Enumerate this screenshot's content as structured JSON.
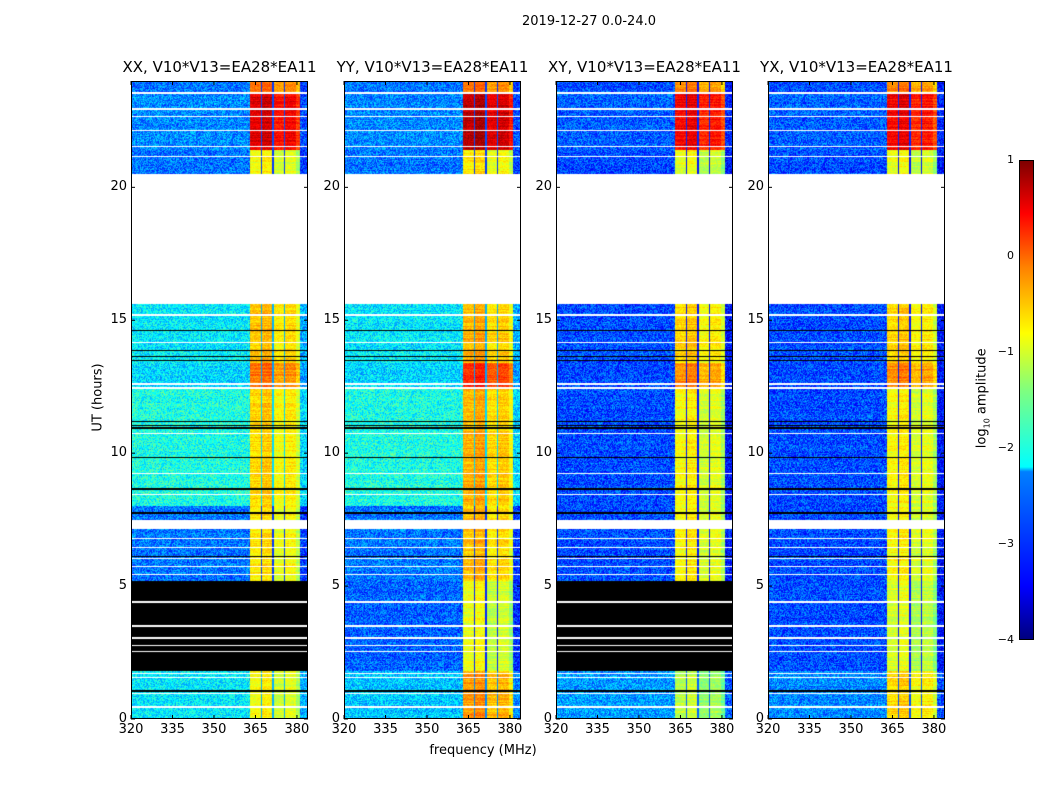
{
  "chart_data": {
    "type": "heatmap",
    "title": "2019-12-27 0.0-24.0",
    "xlabel": "frequency (MHz)",
    "ylabel": "UT (hours)",
    "xlim": [
      320,
      384
    ],
    "ylim": [
      0,
      24
    ],
    "xticks": [
      320,
      335,
      350,
      365,
      380
    ],
    "yticks": [
      0,
      5,
      10,
      15,
      20
    ],
    "colorbar": {
      "label_main": "log",
      "label_sub": "10",
      "label_rest": " amplitude",
      "min": -4,
      "max": 1,
      "ticks": [
        "1",
        "0",
        "−1",
        "−2",
        "−3",
        "−4"
      ],
      "tick_values": [
        1,
        0,
        -1,
        -2,
        -3,
        -4
      ],
      "colormap": "jet"
    },
    "rfi_band_mhz": [
      363,
      381
    ],
    "channel_gaps_mhz": [
      367.2,
      371.4,
      375.6
    ],
    "white_lines_hours": [
      0.45,
      0.95,
      1.55,
      1.7,
      2.55,
      2.75,
      3.05,
      3.5,
      4.4,
      5.45,
      5.75,
      6.05,
      6.45,
      6.8,
      8.45,
      9.25,
      10.75,
      12.45,
      12.6,
      14.15,
      15.2,
      21.15,
      21.55,
      22.15,
      22.65,
      22.95,
      23.55
    ],
    "black_lines_hours": [
      1.05,
      6.1,
      7.75,
      8.65,
      9.85,
      10.95,
      11.05,
      11.2,
      13.5,
      13.65,
      13.85,
      14.6
    ],
    "panels": [
      {
        "title": "XX, V10*V13=EA28*EA11",
        "flagged_white": [
          [
            15.6,
            20.5
          ],
          [
            7.15,
            7.5
          ]
        ],
        "zero_black": [
          [
            1.8,
            5.2
          ]
        ],
        "segments": [
          [
            0,
            1.8,
            -2.2,
            -1.0
          ],
          [
            5.2,
            8,
            -2.8,
            -0.9
          ],
          [
            8,
            12.5,
            -2.0,
            -0.8
          ],
          [
            12.5,
            13.4,
            -2.3,
            -0.3
          ],
          [
            13.4,
            15.6,
            -2.2,
            -0.7
          ],
          [
            20.5,
            21.4,
            -2.8,
            -1.0
          ],
          [
            21.4,
            23.6,
            -2.7,
            0.4
          ],
          [
            23.6,
            24,
            -2.8,
            -0.3
          ]
        ]
      },
      {
        "title": "YY, V10*V13=EA28*EA11",
        "flagged_white": [
          [
            15.6,
            20.5
          ],
          [
            7.15,
            7.5
          ]
        ],
        "zero_black": [],
        "segments": [
          [
            0,
            1.8,
            -2.4,
            -0.5
          ],
          [
            1.8,
            5.2,
            -2.9,
            -1.1
          ],
          [
            5.2,
            8,
            -2.8,
            -0.7
          ],
          [
            8,
            12.5,
            -2.0,
            -0.6
          ],
          [
            12.5,
            13.4,
            -2.3,
            0.1
          ],
          [
            13.4,
            15.6,
            -2.2,
            -0.6
          ],
          [
            20.5,
            21.4,
            -2.8,
            -0.9
          ],
          [
            21.4,
            23.6,
            -2.7,
            0.6
          ],
          [
            23.6,
            24,
            -2.8,
            -0.3
          ]
        ]
      },
      {
        "title": "XY, V10*V13=EA28*EA11",
        "flagged_white": [
          [
            15.6,
            20.5
          ],
          [
            7.15,
            7.5
          ]
        ],
        "zero_black": [
          [
            1.8,
            5.2
          ]
        ],
        "segments": [
          [
            0,
            1.8,
            -2.6,
            -1.3
          ],
          [
            5.2,
            8,
            -3.0,
            -1.0
          ],
          [
            8,
            12.5,
            -3.0,
            -1.0
          ],
          [
            12.5,
            13.4,
            -3.0,
            -0.4
          ],
          [
            13.4,
            15.6,
            -3.0,
            -0.8
          ],
          [
            20.5,
            21.4,
            -3.0,
            -1.1
          ],
          [
            21.4,
            23.6,
            -2.9,
            0.3
          ],
          [
            23.6,
            24,
            -3.0,
            -0.4
          ]
        ]
      },
      {
        "title": "YX, V10*V13=EA28*EA11",
        "flagged_white": [
          [
            15.6,
            20.5
          ],
          [
            7.15,
            7.5
          ]
        ],
        "zero_black": [],
        "segments": [
          [
            0,
            1.8,
            -2.7,
            -0.8
          ],
          [
            1.8,
            5.2,
            -3.0,
            -1.2
          ],
          [
            5.2,
            8,
            -3.0,
            -1.0
          ],
          [
            8,
            12.5,
            -3.0,
            -1.0
          ],
          [
            12.5,
            13.4,
            -3.0,
            -0.4
          ],
          [
            13.4,
            15.6,
            -3.0,
            -0.8
          ],
          [
            20.5,
            21.4,
            -3.0,
            -1.1
          ],
          [
            21.4,
            23.6,
            -2.9,
            0.3
          ],
          [
            23.6,
            24,
            -3.0,
            -0.4
          ]
        ]
      }
    ]
  }
}
